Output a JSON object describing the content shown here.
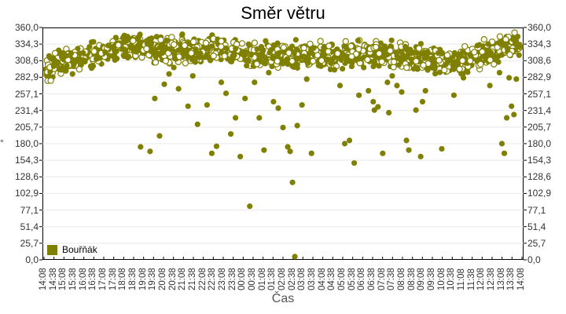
{
  "chart_data": {
    "type": "scatter",
    "title": "Směr větru",
    "xlabel": "Čas",
    "ylabel": "°",
    "ylim": [
      0,
      360
    ],
    "y_ticks": [
      "0,0",
      "25,7",
      "51,4",
      "77,1",
      "102,9",
      "128,6",
      "154,3",
      "180,0",
      "205,7",
      "231,4",
      "257,1",
      "282,9",
      "308,6",
      "334,3",
      "360,0"
    ],
    "x_ticks": [
      "14:08",
      "14:38",
      "15:08",
      "15:38",
      "16:08",
      "16:38",
      "17:08",
      "17:38",
      "18:08",
      "18:38",
      "19:08",
      "19:38",
      "20:08",
      "20:38",
      "21:08",
      "21:38",
      "22:08",
      "22:38",
      "23:08",
      "23:38",
      "00:08",
      "00:38",
      "01:08",
      "01:38",
      "02:08",
      "02:38",
      "03:08",
      "03:38",
      "04:08",
      "04:38",
      "05:08",
      "05:38",
      "06:08",
      "06:38",
      "07:08",
      "07:38",
      "08:08",
      "08:38",
      "09:08",
      "09:38",
      "10:08",
      "10:38",
      "11:08",
      "11:38",
      "12:08",
      "12:38",
      "13:08",
      "13:38",
      "14:08"
    ],
    "grid": true,
    "legend_position": "inside-bottom-left",
    "series": [
      {
        "name": "Bouřňák",
        "color": "#808000",
        "main_band_trend": [
          {
            "x": "14:08",
            "y": 295
          },
          {
            "x": "15:38",
            "y": 312
          },
          {
            "x": "17:08",
            "y": 322
          },
          {
            "x": "18:38",
            "y": 330
          },
          {
            "x": "20:08",
            "y": 325
          },
          {
            "x": "21:38",
            "y": 324
          },
          {
            "x": "23:08",
            "y": 327
          },
          {
            "x": "00:38",
            "y": 314
          },
          {
            "x": "02:08",
            "y": 318
          },
          {
            "x": "03:38",
            "y": 316
          },
          {
            "x": "05:08",
            "y": 318
          },
          {
            "x": "06:38",
            "y": 320
          },
          {
            "x": "08:08",
            "y": 318
          },
          {
            "x": "09:38",
            "y": 312
          },
          {
            "x": "11:08",
            "y": 306
          },
          {
            "x": "12:38",
            "y": 322
          },
          {
            "x": "14:08",
            "y": 334
          }
        ],
        "band_spread": 14,
        "outliers": [
          {
            "x": 0.2,
            "y": 175
          },
          {
            "x": 0.22,
            "y": 168
          },
          {
            "x": 0.23,
            "y": 250
          },
          {
            "x": 0.24,
            "y": 192
          },
          {
            "x": 0.25,
            "y": 272
          },
          {
            "x": 0.26,
            "y": 288
          },
          {
            "x": 0.27,
            "y": 298
          },
          {
            "x": 0.28,
            "y": 265
          },
          {
            "x": 0.3,
            "y": 238
          },
          {
            "x": 0.31,
            "y": 285
          },
          {
            "x": 0.32,
            "y": 210
          },
          {
            "x": 0.34,
            "y": 240
          },
          {
            "x": 0.35,
            "y": 165
          },
          {
            "x": 0.36,
            "y": 176
          },
          {
            "x": 0.37,
            "y": 275
          },
          {
            "x": 0.38,
            "y": 258
          },
          {
            "x": 0.39,
            "y": 195
          },
          {
            "x": 0.4,
            "y": 220
          },
          {
            "x": 0.41,
            "y": 160
          },
          {
            "x": 0.42,
            "y": 250
          },
          {
            "x": 0.43,
            "y": 83
          },
          {
            "x": 0.44,
            "y": 275
          },
          {
            "x": 0.45,
            "y": 220
          },
          {
            "x": 0.46,
            "y": 170
          },
          {
            "x": 0.47,
            "y": 290
          },
          {
            "x": 0.48,
            "y": 245
          },
          {
            "x": 0.49,
            "y": 235
          },
          {
            "x": 0.5,
            "y": 205
          },
          {
            "x": 0.51,
            "y": 175
          },
          {
            "x": 0.515,
            "y": 168
          },
          {
            "x": 0.52,
            "y": 120
          },
          {
            "x": 0.525,
            "y": 5
          },
          {
            "x": 0.53,
            "y": 208
          },
          {
            "x": 0.54,
            "y": 240
          },
          {
            "x": 0.55,
            "y": 280
          },
          {
            "x": 0.56,
            "y": 165
          },
          {
            "x": 0.58,
            "y": 300
          },
          {
            "x": 0.6,
            "y": 295
          },
          {
            "x": 0.62,
            "y": 270
          },
          {
            "x": 0.63,
            "y": 180
          },
          {
            "x": 0.64,
            "y": 185
          },
          {
            "x": 0.65,
            "y": 150
          },
          {
            "x": 0.66,
            "y": 255
          },
          {
            "x": 0.67,
            "y": 298
          },
          {
            "x": 0.68,
            "y": 262
          },
          {
            "x": 0.69,
            "y": 245
          },
          {
            "x": 0.7,
            "y": 237
          },
          {
            "x": 0.71,
            "y": 165
          },
          {
            "x": 0.72,
            "y": 275
          },
          {
            "x": 0.73,
            "y": 285
          },
          {
            "x": 0.74,
            "y": 270
          },
          {
            "x": 0.75,
            "y": 260
          },
          {
            "x": 0.76,
            "y": 185
          },
          {
            "x": 0.765,
            "y": 170
          },
          {
            "x": 0.78,
            "y": 232
          },
          {
            "x": 0.79,
            "y": 160
          },
          {
            "x": 0.8,
            "y": 262
          },
          {
            "x": 0.82,
            "y": 300
          },
          {
            "x": 0.86,
            "y": 255
          },
          {
            "x": 0.88,
            "y": 282
          }
        ]
      }
    ]
  }
}
